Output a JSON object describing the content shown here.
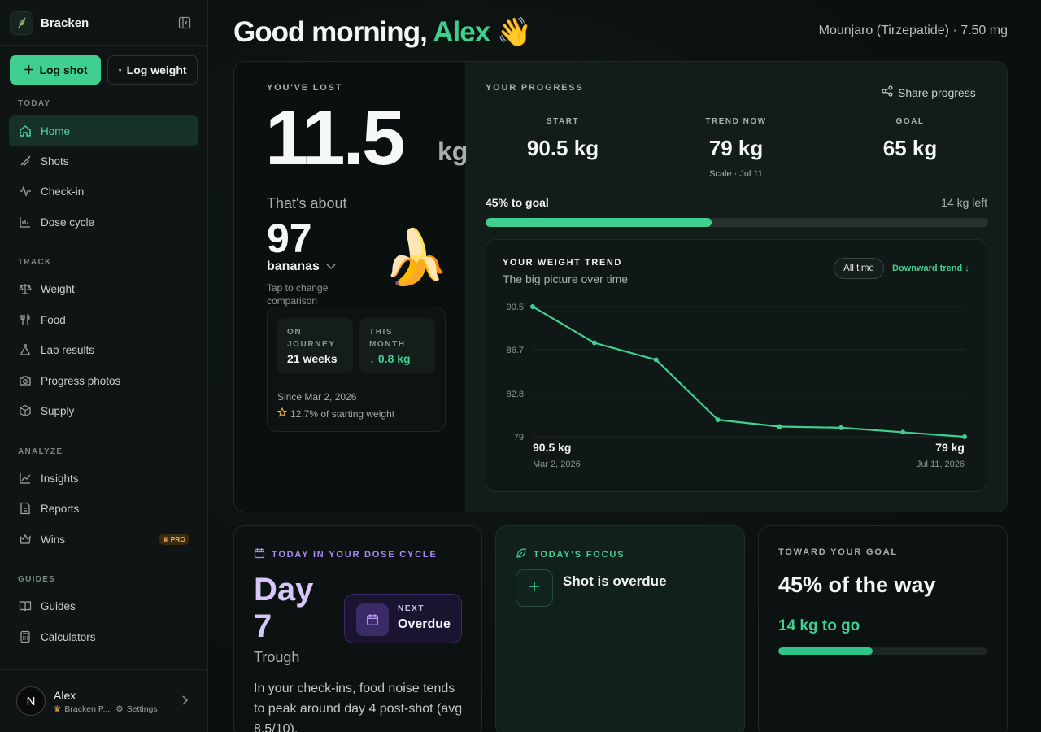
{
  "app": {
    "name": "Bracken"
  },
  "actions": {
    "log_shot": "Log shot",
    "log_weight": "Log weight"
  },
  "sidebar": {
    "sections": {
      "today": "TODAY",
      "track": "TRACK",
      "analyze": "ANALYZE",
      "guides": "GUIDES"
    },
    "items": {
      "home": "Home",
      "shots": "Shots",
      "checkin": "Check-in",
      "dose_cycle": "Dose cycle",
      "weight": "Weight",
      "food": "Food",
      "lab_results": "Lab results",
      "progress_photos": "Progress photos",
      "supply": "Supply",
      "insights": "Insights",
      "reports": "Reports",
      "wins": "Wins",
      "guides": "Guides",
      "calculators": "Calculators"
    },
    "pro_badge": "PRO",
    "user": {
      "initial": "N",
      "name": "Alex",
      "plan": "Bracken P...",
      "settings": "Settings"
    }
  },
  "header": {
    "greeting": "Good morning,",
    "name": "Alex",
    "emoji": "👋",
    "medication": "Mounjaro (Tirzepatide) · 7.50 mg"
  },
  "lost": {
    "eyebrow": "YOU'VE LOST",
    "value": "11.5",
    "unit": "kg",
    "about_label": "That's about",
    "about_count": "97",
    "about_item": "bananas",
    "about_emoji": "🍌",
    "tap_hint": "Tap to change comparison",
    "journey_label": "ON JOURNEY",
    "journey_value": "21 weeks",
    "month_label": "THIS MONTH",
    "month_value": "↓ 0.8 kg",
    "since": "Since Mar 2, 2026",
    "since_dot": "·",
    "pct_of_start": "12.7% of starting weight"
  },
  "progress": {
    "eyebrow": "YOUR PROGRESS",
    "share": "Share progress",
    "start_label": "START",
    "start_value": "90.5 kg",
    "trend_label": "TREND NOW",
    "trend_value": "79 kg",
    "trend_sub": "Scale · Jul 11",
    "goal_label": "GOAL",
    "goal_value": "65 kg",
    "goal_pct_text": "45% to goal",
    "left_text": "14 kg left",
    "goal_fraction": 0.45
  },
  "trend": {
    "title": "YOUR WEIGHT TREND",
    "subtitle": "The big picture over time",
    "range_button": "All time",
    "direction": "Downward trend ↓",
    "start_value_label": "90.5 kg",
    "start_date": "Mar 2, 2026",
    "end_value_label": "79 kg",
    "end_date": "Jul 11, 2026"
  },
  "chart_data": {
    "type": "line",
    "title": "YOUR WEIGHT TREND",
    "xlabel": "",
    "ylabel": "",
    "y_ticks": [
      "90.5",
      "86.7",
      "82.8",
      "79"
    ],
    "ylim": [
      79,
      90.5
    ],
    "grid": true,
    "color": "#3fcf8e",
    "series": [
      {
        "values": [
          90.5,
          87.3,
          85.8,
          80.5,
          79.9,
          79.8,
          79.4,
          79.0
        ]
      }
    ]
  },
  "dose": {
    "eyebrow": "TODAY IN YOUR DOSE CYCLE",
    "day": "Day 7",
    "phase": "Trough",
    "next_label": "NEXT",
    "next_value": "Overdue",
    "text": "In your check-ins, food noise tends to peak around day 4 post-shot (avg 8.5/10)."
  },
  "focus": {
    "eyebrow": "TODAY'S FOCUS",
    "text": "Shot is overdue"
  },
  "goal_card": {
    "eyebrow": "TOWARD YOUR GOAL",
    "headline": "45% of the way",
    "to_go": "14 kg to go",
    "fraction": 0.45
  },
  "colors": {
    "accent": "#3fcf8e",
    "dose_accent": "#a98bf0",
    "pro": "#f0b04a"
  }
}
